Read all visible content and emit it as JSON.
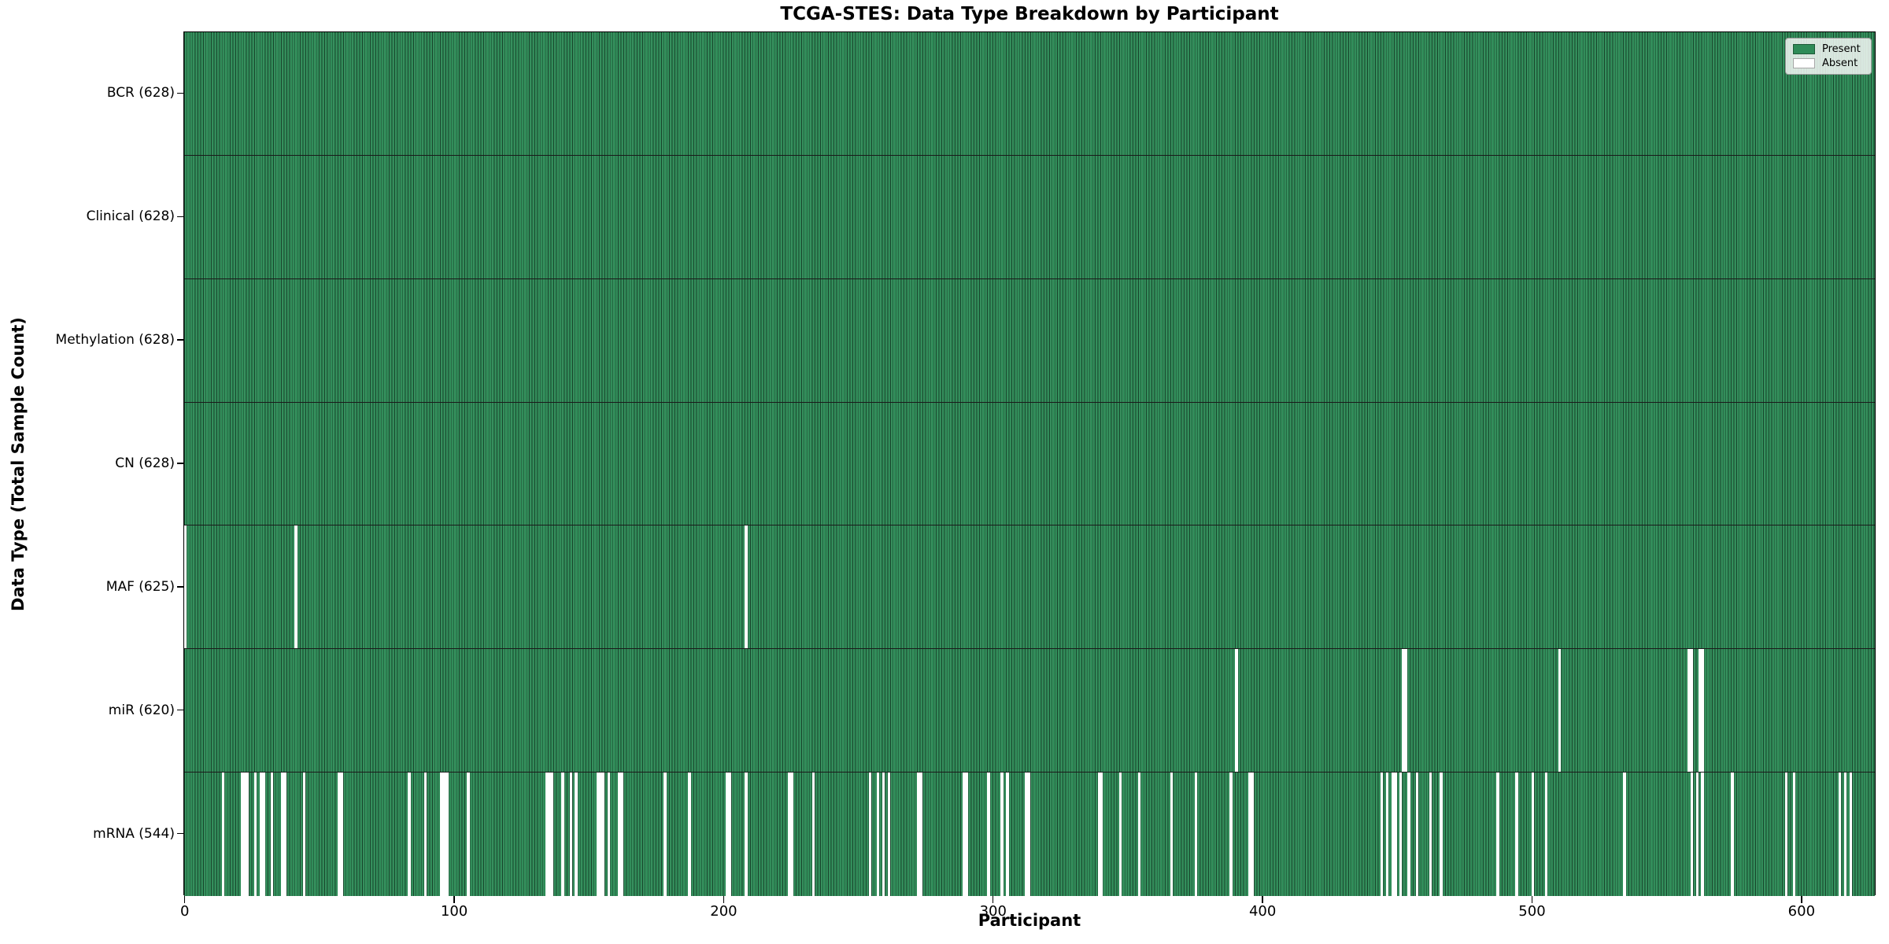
{
  "title": "TCGA-STES: Data Type Breakdown by Participant",
  "xlabel": "Participant",
  "ylabel": "Data Type (Total Sample Count)",
  "legend": {
    "present_label": "Present",
    "absent_label": "Absent"
  },
  "colors": {
    "present": "#2e8b57",
    "absent": "#ffffff",
    "bar_edge": "rgba(0,0,0,0.5)",
    "axis": "#000000"
  },
  "chart_data": {
    "type": "heatmap",
    "title": "TCGA-STES: Data Type Breakdown by Participant",
    "xlabel": "Participant",
    "ylabel": "Data Type (Total Sample Count)",
    "legend_entries": [
      "Present",
      "Absent"
    ],
    "legend_position": "upper right",
    "grid": false,
    "n_participants": 628,
    "x_ticks": [
      0,
      100,
      200,
      300,
      400,
      500,
      600
    ],
    "x_range": [
      -0.5,
      627.5
    ],
    "rows": [
      {
        "key": "bcr",
        "label": "BCR (628)",
        "data_type": "BCR",
        "present_count": 628,
        "absent_participants": []
      },
      {
        "key": "clinical",
        "label": "Clinical (628)",
        "data_type": "Clinical",
        "present_count": 628,
        "absent_participants": []
      },
      {
        "key": "methylation",
        "label": "Methylation (628)",
        "data_type": "Methylation",
        "present_count": 628,
        "absent_participants": []
      },
      {
        "key": "cn",
        "label": "CN (628)",
        "data_type": "CN",
        "present_count": 628,
        "absent_participants": []
      },
      {
        "key": "maf",
        "label": "MAF (625)",
        "data_type": "MAF",
        "present_count": 625,
        "absent_participants": [
          0,
          41,
          208
        ]
      },
      {
        "key": "mir",
        "label": "miR (620)",
        "data_type": "miR",
        "present_count": 620,
        "absent_participants": [
          390,
          452,
          453,
          510,
          558,
          559,
          562,
          563
        ]
      },
      {
        "key": "mrna",
        "label": "mRNA (544)",
        "data_type": "mRNA",
        "present_count": 544,
        "absent_participants": [
          14,
          21,
          22,
          23,
          26,
          28,
          29,
          32,
          36,
          37,
          44,
          57,
          58,
          83,
          89,
          95,
          96,
          97,
          105,
          134,
          135,
          136,
          140,
          143,
          145,
          153,
          154,
          155,
          157,
          161,
          162,
          178,
          187,
          201,
          202,
          208,
          224,
          225,
          233,
          254,
          257,
          259,
          261,
          272,
          273,
          289,
          290,
          298,
          303,
          305,
          312,
          313,
          339,
          340,
          347,
          354,
          366,
          375,
          388,
          395,
          396,
          444,
          446,
          448,
          449,
          451,
          454,
          457,
          462,
          466,
          487,
          494,
          500,
          505,
          534,
          559,
          561,
          563,
          574,
          594,
          597,
          614,
          616,
          618
        ]
      }
    ]
  }
}
